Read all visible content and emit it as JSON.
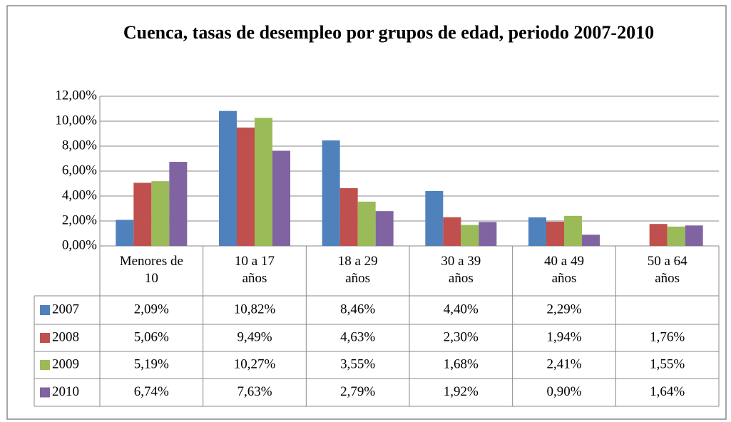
{
  "chart_data": {
    "type": "bar",
    "title": "Cuenca, tasas de desempleo por grupos de edad, periodo 2007-2010",
    "categories": [
      "Menores de\n10",
      "10 a 17\naños",
      "18 a 29\naños",
      "30 a 39\naños",
      "40 a 49\naños",
      "50 a 64\naños"
    ],
    "series": [
      {
        "name": "2007",
        "color": "#4f81bd",
        "values": [
          2.09,
          10.82,
          8.46,
          4.4,
          2.29,
          null
        ],
        "value_labels": [
          "2,09%",
          "10,82%",
          "8,46%",
          "4,40%",
          "2,29%",
          null
        ]
      },
      {
        "name": "2008",
        "color": "#c0504d",
        "values": [
          5.06,
          9.49,
          4.63,
          2.3,
          1.94,
          1.76
        ],
        "value_labels": [
          "5,06%",
          "9,49%",
          "4,63%",
          "2,30%",
          "1,94%",
          "1,76%"
        ]
      },
      {
        "name": "2009",
        "color": "#9bbb59",
        "values": [
          5.19,
          10.27,
          3.55,
          1.68,
          2.41,
          1.55
        ],
        "value_labels": [
          "5,19%",
          "10,27%",
          "3,55%",
          "1,68%",
          "2,41%",
          "1,55%"
        ]
      },
      {
        "name": "2010",
        "color": "#8064a2",
        "values": [
          6.74,
          7.63,
          2.79,
          1.92,
          0.9,
          1.64
        ],
        "value_labels": [
          "6,74%",
          "7,63%",
          "2,79%",
          "1,92%",
          "0,90%",
          "1,64%"
        ]
      }
    ],
    "ylim": [
      0,
      12
    ],
    "yticks": [
      {
        "value": 0,
        "label": "0,00%"
      },
      {
        "value": 2,
        "label": "2,00%"
      },
      {
        "value": 4,
        "label": "4,00%"
      },
      {
        "value": 6,
        "label": "6,00%"
      },
      {
        "value": 8,
        "label": "8,00%"
      },
      {
        "value": 10,
        "label": "10,00%"
      },
      {
        "value": 12,
        "label": "12,00%"
      }
    ],
    "grid": true
  }
}
